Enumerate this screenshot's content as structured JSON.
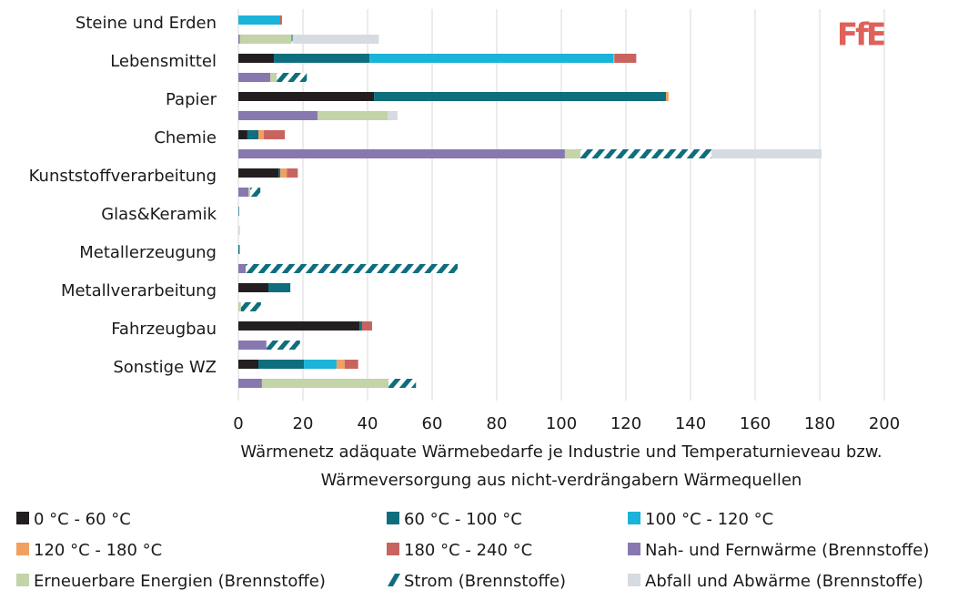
{
  "chart_data": {
    "type": "bar",
    "orientation": "horizontal",
    "stacked": true,
    "logo": "FfE",
    "x_label": [
      "Wärmenetz adäquate Wärmebedarfe je Industrie und Temperaturnieveau bzw.",
      "Wärmeversorgung aus nicht-verdrängabern Wärmequellen"
    ],
    "categories": [
      "Steine und Erden",
      "Lebensmittel",
      "Papier",
      "Chemie",
      "Kunststoffverarbeitung",
      "Glas&Keramik",
      "Metallerzeugung",
      "Metallverarbeitung",
      "Fahrzeugbau",
      "Sonstige WZ"
    ],
    "xlim": [
      0,
      200
    ],
    "xticks": [
      0,
      20,
      40,
      60,
      80,
      100,
      120,
      140,
      160,
      180,
      200
    ],
    "grid": true,
    "demand_series": [
      {
        "name": "0 °C - 60 °C",
        "color": "#231f20",
        "values": [
          0,
          11.0,
          42.0,
          2.8,
          12.4,
          0,
          0,
          9.3,
          37.5,
          6.2
        ]
      },
      {
        "name": "60 °C - 100 °C",
        "color": "#0e6e7e",
        "values": [
          0,
          29.6,
          90.4,
          3.4,
          0.6,
          0.2,
          0.4,
          6.8,
          0.8,
          14.1
        ]
      },
      {
        "name": "100 °C - 120 °C",
        "color": "#1ab3d9",
        "values": [
          12.7,
          75.5,
          0,
          0,
          0,
          0,
          0,
          0,
          0,
          10.1
        ]
      },
      {
        "name": "120 °C - 180 °C",
        "color": "#f0a060",
        "values": [
          0,
          0.3,
          0.8,
          1.7,
          2.0,
          0,
          0,
          0,
          0,
          2.5
        ]
      },
      {
        "name": "180 °C - 240 °C",
        "color": "#c8645f",
        "values": [
          0.8,
          6.8,
          0,
          6.5,
          3.4,
          0,
          0,
          0,
          3.1,
          4.2
        ]
      }
    ],
    "supply_series": [
      {
        "name": "Nah- und Fernwärme (Brennstoffe)",
        "color": "#8878b0",
        "values": [
          0.5,
          9.9,
          24.5,
          101.1,
          3.1,
          0,
          2.3,
          0,
          8.7,
          7.3
        ]
      },
      {
        "name": "Erneuerbare Energien (Brennstoffe)",
        "color": "#c2d4a8",
        "values": [
          16.0,
          2.0,
          21.7,
          4.8,
          0.6,
          0,
          0,
          0.8,
          0,
          39.2
        ]
      },
      {
        "name": "Strom (Brennstoffe)",
        "color": "#0e6e7e",
        "pattern": "hatch",
        "values": [
          0.3,
          9.3,
          0,
          40.6,
          3.1,
          0,
          65.6,
          6.2,
          10.4,
          8.5
        ]
      },
      {
        "name": "Abfall und Abwärme (Brennstoffe)",
        "color": "#d6dbe1",
        "values": [
          26.7,
          0,
          3.1,
          34.1,
          0,
          0.5,
          0,
          0,
          0,
          0
        ]
      }
    ]
  }
}
